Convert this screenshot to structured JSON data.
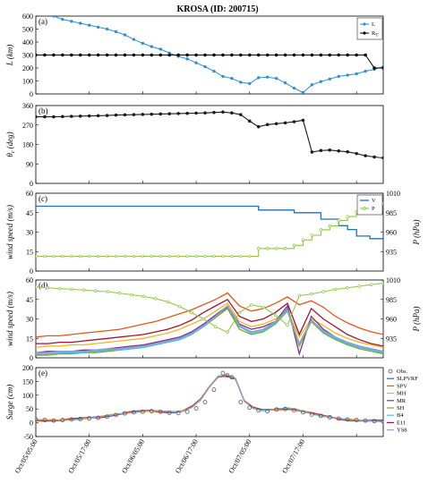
{
  "figure": {
    "title": "KROSA (ID: 200715)",
    "x_tick_labels": [
      "Oct/05/05:00",
      "Oct/05/17:00",
      "Oct/06/05:00",
      "Oct/06/17:00",
      "Oct/07/05:00",
      "Oct/07/17:00"
    ]
  },
  "colors": {
    "L": "#2e8fd1",
    "R": "#000000",
    "theta": "#1a1a1a",
    "V": "#1f6fbf",
    "P": "#8dc63f",
    "Obs": "#555555",
    "SLPVRF": "#3d5bb5",
    "SPV": "#e8541d",
    "MH": "#f0b323",
    "MR": "#7e2f8e",
    "SH": "#77ac30",
    "B4": "#4dbeee",
    "E11": "#a2142f",
    "YS8": "#8fa3d4"
  },
  "chart_data": [
    {
      "type": "line",
      "panel": "(a)",
      "ylabel": "L (km)",
      "ylim": [
        0,
        600
      ],
      "yticks": [
        0,
        100,
        200,
        300,
        400,
        500,
        600
      ],
      "xlim": [
        0,
        78
      ],
      "series": [
        {
          "name": "L",
          "x": [
            0,
            2,
            4,
            6,
            8,
            10,
            12,
            14,
            16,
            18,
            20,
            22,
            24,
            26,
            28,
            30,
            32,
            34,
            36,
            38,
            40,
            42,
            44,
            46,
            48,
            50,
            52,
            54,
            56,
            58,
            60,
            62,
            64,
            66,
            68,
            70,
            72,
            74,
            76,
            78
          ],
          "values": [
            640,
            620,
            600,
            575,
            560,
            545,
            530,
            515,
            500,
            480,
            455,
            420,
            390,
            365,
            345,
            315,
            290,
            270,
            240,
            210,
            175,
            135,
            120,
            90,
            80,
            125,
            130,
            120,
            85,
            45,
            10,
            70,
            95,
            115,
            135,
            145,
            155,
            175,
            190,
            210
          ]
        },
        {
          "name": "R",
          "x": [
            0,
            2,
            4,
            6,
            8,
            10,
            12,
            14,
            16,
            18,
            20,
            22,
            24,
            26,
            28,
            30,
            32,
            34,
            36,
            38,
            40,
            42,
            44,
            46,
            48,
            50,
            52,
            54,
            56,
            58,
            60,
            62,
            64,
            66,
            68,
            70,
            72,
            74,
            76,
            78
          ],
          "values": [
            300,
            300,
            300,
            300,
            300,
            300,
            300,
            300,
            300,
            300,
            300,
            300,
            300,
            300,
            300,
            300,
            300,
            300,
            300,
            300,
            300,
            300,
            300,
            300,
            300,
            300,
            300,
            300,
            300,
            300,
            300,
            300,
            300,
            300,
            300,
            300,
            300,
            300,
            200,
            200
          ]
        }
      ],
      "legend": [
        "L",
        "R"
      ],
      "legend_position": "top-right"
    },
    {
      "type": "line",
      "panel": "(b)",
      "ylabel": "θc (deg)",
      "ylim": [
        0,
        360
      ],
      "yticks": [
        0,
        90,
        180,
        270,
        360
      ],
      "series": [
        {
          "name": "theta_c",
          "x": [
            0,
            2,
            4,
            6,
            8,
            10,
            12,
            14,
            16,
            18,
            20,
            22,
            24,
            26,
            28,
            30,
            32,
            34,
            36,
            38,
            40,
            42,
            44,
            46,
            48,
            50,
            52,
            54,
            56,
            58,
            60,
            62,
            64,
            66,
            68,
            70,
            72,
            74,
            76,
            78
          ],
          "values": [
            308,
            308,
            308,
            309,
            310,
            311,
            312,
            313,
            314,
            316,
            317,
            318,
            319,
            320,
            321,
            322,
            323,
            324,
            325,
            326,
            328,
            330,
            326,
            318,
            288,
            262,
            272,
            276,
            280,
            285,
            292,
            145,
            152,
            154,
            150,
            146,
            138,
            128,
            122,
            118
          ]
        }
      ]
    },
    {
      "type": "line",
      "panel": "(c)",
      "ylabel": "wind speed (m/s)",
      "ylim": [
        0,
        60
      ],
      "yticks": [
        0,
        15,
        30,
        45,
        60
      ],
      "y2label": "P (hPa)",
      "y2lim": [
        910,
        1010
      ],
      "y2ticks": [
        935,
        960,
        985,
        1010
      ],
      "series": [
        {
          "name": "V",
          "axis": "left",
          "x": [
            0,
            49,
            50,
            58,
            64,
            68,
            70,
            72,
            75,
            78
          ],
          "values": [
            50,
            50,
            47,
            45,
            40,
            35,
            32,
            27,
            25,
            23
          ]
        },
        {
          "name": "P",
          "axis": "right",
          "x": [
            0,
            49,
            50,
            56,
            58,
            60,
            62,
            64,
            66,
            68,
            70,
            72,
            74,
            76,
            78
          ],
          "values": [
            929,
            929,
            939,
            939,
            943,
            950,
            956,
            963,
            968,
            975,
            980,
            986,
            992,
            995,
            997
          ]
        }
      ],
      "legend": [
        "V",
        "P"
      ],
      "legend_position": "top-right"
    },
    {
      "type": "line",
      "panel": "(d)",
      "ylabel": "wind speed (m/s)",
      "ylim": [
        0,
        60
      ],
      "yticks": [
        0,
        15,
        30,
        45,
        60
      ],
      "y2label": "P (hPa)",
      "y2lim": [
        910,
        1010
      ],
      "y2ticks": [
        935,
        960,
        985,
        1010
      ],
      "series": [
        {
          "name": "SPV",
          "values": [
            16,
            17,
            17,
            18,
            19,
            20,
            21,
            22,
            24,
            26,
            28,
            31,
            34,
            37,
            41,
            45,
            50,
            40,
            36,
            38,
            42,
            47,
            41,
            44,
            39,
            32,
            27,
            23,
            20,
            18
          ]
        },
        {
          "name": "E11",
          "values": [
            11,
            11,
            12,
            12,
            13,
            14,
            15,
            16,
            17,
            18,
            20,
            22,
            25,
            29,
            35,
            40,
            45,
            32,
            28,
            30,
            35,
            42,
            18,
            38,
            30,
            24,
            18,
            14,
            11,
            9
          ]
        },
        {
          "name": "MH",
          "values": [
            8,
            9,
            9,
            10,
            10,
            11,
            12,
            13,
            14,
            15,
            17,
            19,
            22,
            26,
            30,
            36,
            42,
            28,
            24,
            26,
            30,
            36,
            16,
            30,
            25,
            19,
            15,
            12,
            10,
            8
          ]
        },
        {
          "name": "MR",
          "values": [
            4,
            5,
            5,
            5,
            6,
            6,
            7,
            8,
            9,
            10,
            12,
            14,
            16,
            20,
            26,
            33,
            40,
            26,
            22,
            24,
            28,
            40,
            3,
            32,
            22,
            16,
            12,
            9,
            7,
            5
          ]
        },
        {
          "name": "SLPVRF",
          "values": [
            3,
            3,
            4,
            4,
            5,
            5,
            6,
            7,
            8,
            9,
            11,
            13,
            15,
            19,
            25,
            32,
            39,
            24,
            20,
            22,
            27,
            38,
            10,
            29,
            20,
            15,
            11,
            8,
            6,
            4
          ]
        },
        {
          "name": "SH",
          "values": [
            2,
            2,
            3,
            3,
            4,
            4,
            5,
            6,
            7,
            8,
            10,
            12,
            14,
            18,
            24,
            31,
            38,
            22,
            18,
            20,
            26,
            36,
            9,
            28,
            19,
            14,
            10,
            7,
            5,
            3
          ]
        },
        {
          "name": "B4",
          "values": [
            3,
            3,
            4,
            4,
            4,
            5,
            6,
            6,
            7,
            8,
            10,
            12,
            14,
            18,
            24,
            32,
            40,
            24,
            19,
            21,
            27,
            37,
            11,
            29,
            20,
            15,
            11,
            8,
            6,
            4
          ]
        },
        {
          "name": "YS8",
          "values": [
            4,
            4,
            5,
            5,
            5,
            6,
            7,
            7,
            8,
            9,
            11,
            13,
            15,
            19,
            25,
            32,
            40,
            25,
            20,
            22,
            28,
            37,
            11,
            29,
            21,
            16,
            12,
            9,
            7,
            5
          ]
        },
        {
          "name": "P",
          "axis": "right",
          "values": [
            1001,
            1000,
            999,
            998,
            997,
            996,
            995,
            993,
            991,
            989,
            986,
            982,
            976,
            968,
            960,
            950,
            943,
            968,
            978,
            975,
            965,
            952,
            990,
            992,
            995,
            998,
            1000,
            1002,
            1004,
            1006
          ]
        }
      ]
    },
    {
      "type": "line",
      "panel": "(e)",
      "ylabel": "Surge (cm)",
      "ylim": [
        -50,
        200
      ],
      "yticks": [
        -50,
        0,
        50,
        100,
        150,
        200
      ],
      "series": [
        {
          "name": "Obs.",
          "marker": "circle",
          "x": [
            0,
            2,
            4,
            6,
            8,
            10,
            12,
            14,
            16,
            18,
            20,
            22,
            24,
            26,
            28,
            30,
            32,
            34,
            36,
            38,
            40,
            42,
            43,
            44,
            46,
            48,
            50,
            52,
            54,
            56,
            58,
            60,
            62,
            64,
            66,
            68,
            70,
            72,
            74,
            76,
            78
          ],
          "values": [
            12,
            10,
            8,
            10,
            12,
            14,
            16,
            18,
            22,
            28,
            34,
            38,
            40,
            42,
            40,
            36,
            35,
            40,
            52,
            75,
            120,
            180,
            172,
            165,
            75,
            55,
            45,
            42,
            48,
            50,
            45,
            38,
            30,
            25,
            20,
            15,
            12,
            10,
            8,
            6,
            5
          ]
        },
        {
          "name": "SLPVRF"
        },
        {
          "name": "SPV"
        },
        {
          "name": "MH"
        },
        {
          "name": "MR"
        },
        {
          "name": "SH"
        },
        {
          "name": "B4"
        },
        {
          "name": "E11"
        },
        {
          "name": "YS8"
        }
      ],
      "model_base": [
        10,
        9,
        9,
        10,
        12,
        14,
        17,
        20,
        24,
        29,
        34,
        38,
        41,
        43,
        42,
        40,
        39,
        44,
        58,
        85,
        130,
        168,
        172,
        160,
        80,
        54,
        46,
        46,
        50,
        52,
        48,
        40,
        32,
        25,
        19,
        14,
        11,
        9,
        8,
        7,
        6
      ],
      "legend": [
        "Obs.",
        "SLPVRF",
        "SPV",
        "MH",
        "MR",
        "SH",
        "B4",
        "E11",
        "YS8"
      ],
      "legend_position": "top-right"
    }
  ],
  "legends": {
    "a": [
      "L",
      "R"
    ],
    "c": [
      "V",
      "P"
    ],
    "e": [
      "Obs.",
      "SLPVRF",
      "SPV",
      "MH",
      "MR",
      "SH",
      "B4",
      "E11",
      "YS8"
    ]
  },
  "axis_labels": {
    "a": "L (km)",
    "b_pre": "θ",
    "b_sub": "c",
    "b_post": " (deg)",
    "c": "wind speed (m/s)",
    "c2": "P (hPa)",
    "d": "wind speed (m/s)",
    "d2": "P (hPa)",
    "e": "Surge (cm)"
  },
  "panel_labels": [
    "(a)",
    "(b)",
    "(c)",
    "(d)",
    "(e)"
  ],
  "legend_a_R_sub": "T"
}
